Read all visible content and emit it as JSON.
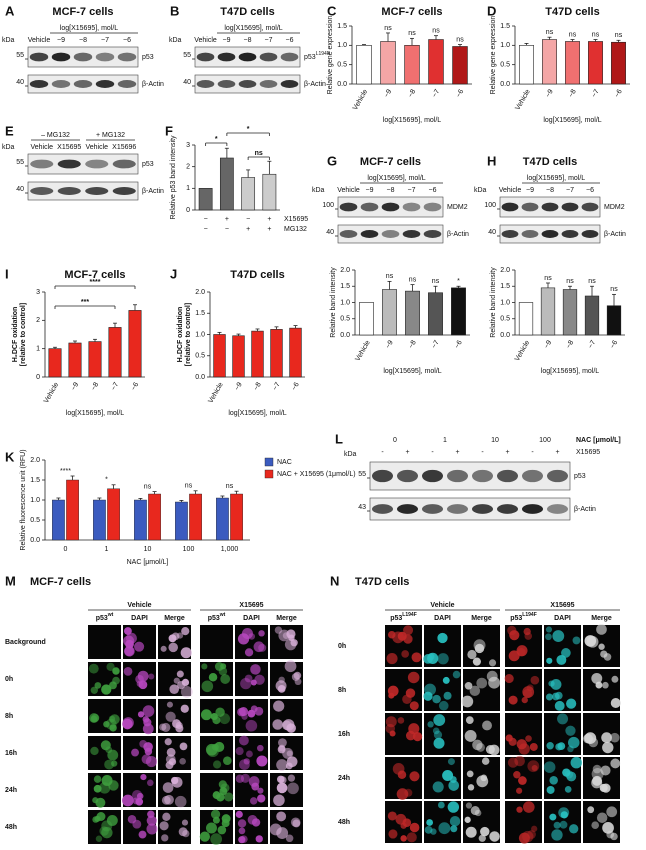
{
  "chart_data": [
    {
      "type": "bar",
      "letter": "C",
      "title": "MCF-7 cells",
      "ylabel": "Relative gene expression",
      "xlabel": "log[X15695], mol/L",
      "categories": [
        "Vehicle",
        "−9",
        "−8",
        "−7",
        "−6"
      ],
      "values": [
        1.0,
        1.1,
        1.0,
        1.15,
        0.97
      ],
      "errors": [
        0.02,
        0.22,
        0.18,
        0.1,
        0.05
      ],
      "colors": [
        "#ffffff",
        "#f4a6a6",
        "#f07070",
        "#e03030",
        "#b01818"
      ],
      "annotations": [
        null,
        "ns",
        "ns",
        "ns",
        "ns"
      ],
      "ylim": [
        0,
        1.5
      ],
      "yticks": [
        {
          "value": 0,
          "label": "0.0"
        },
        0.5,
        {
          "value": 1,
          "label": "1.0"
        },
        1.5
      ]
    },
    {
      "type": "bar",
      "letter": "D",
      "title": "T47D cells",
      "ylabel": "Relative gene expression",
      "xlabel": "log[X15695], mol/L",
      "categories": [
        "Vehicle",
        "−9",
        "−8",
        "−7",
        "−6"
      ],
      "values": [
        1.0,
        1.15,
        1.1,
        1.1,
        1.08
      ],
      "errors": [
        0.05,
        0.06,
        0.05,
        0.05,
        0.05
      ],
      "colors": [
        "#ffffff",
        "#f4a6a6",
        "#f07070",
        "#e03030",
        "#b01818"
      ],
      "annotations": [
        null,
        "ns",
        "ns",
        "ns",
        "ns"
      ],
      "ylim": [
        0,
        1.5
      ],
      "yticks": [
        {
          "value": 0,
          "label": "0.0"
        },
        0.5,
        {
          "value": 1,
          "label": "1.0"
        },
        1.5
      ]
    },
    {
      "type": "bar",
      "letter": "F",
      "ylabel": "Relative p53 band intensity",
      "values": [
        1.0,
        2.4,
        1.5,
        1.65
      ],
      "errors": [
        0,
        0.45,
        0.35,
        0.6
      ],
      "colors": [
        "#666666",
        "#666666",
        "#cccccc",
        "#cccccc"
      ],
      "rows": [
        {
          "label": "X15695",
          "signs": [
            "−",
            "+",
            "−",
            "+"
          ]
        },
        {
          "label": "MG132",
          "signs": [
            "−",
            "−",
            "+",
            "+"
          ]
        }
      ],
      "brackets": [
        "*",
        "ns",
        "*"
      ],
      "ylim": [
        0,
        3
      ],
      "yticks": [
        0,
        1,
        2,
        3
      ]
    },
    {
      "type": "bar",
      "ylabel": "Relative band intensity",
      "xlabel": "log[X15695], mol/L",
      "categories": [
        "Vehicle",
        "−9",
        "−8",
        "−7",
        "−6"
      ],
      "values": [
        1.0,
        1.4,
        1.35,
        1.3,
        1.45
      ],
      "errors": [
        0,
        0.25,
        0.2,
        0.2,
        0.05
      ],
      "colors": [
        "#ffffff",
        "#bbbbbb",
        "#888888",
        "#555555",
        "#111111"
      ],
      "annotations": [
        null,
        "ns",
        "ns",
        "ns",
        "*"
      ],
      "ylim": [
        0,
        2
      ],
      "yticks": [
        {
          "value": 0,
          "label": "0.0"
        },
        0.5,
        {
          "value": 1,
          "label": "1.0"
        },
        1.5,
        {
          "value": 2,
          "label": "2.0"
        }
      ]
    },
    {
      "type": "bar",
      "ylabel": "Relative band intensity",
      "xlabel": "log[X15695], mol/L",
      "categories": [
        "Vehicle",
        "−9",
        "−8",
        "−7",
        "−6"
      ],
      "values": [
        1.0,
        1.45,
        1.4,
        1.2,
        0.9
      ],
      "errors": [
        0,
        0.15,
        0.1,
        0.3,
        0.35
      ],
      "colors": [
        "#ffffff",
        "#bbbbbb",
        "#888888",
        "#555555",
        "#111111"
      ],
      "annotations": [
        null,
        "ns",
        "ns",
        "ns",
        "ns"
      ],
      "ylim": [
        0,
        2
      ],
      "yticks": [
        {
          "value": 0,
          "label": "0.0"
        },
        0.5,
        {
          "value": 1,
          "label": "1.0"
        },
        1.5,
        {
          "value": 2,
          "label": "2.0"
        }
      ]
    },
    {
      "type": "bar",
      "letter": "I",
      "title": "MCF-7 cells",
      "ylabel": [
        "H₂DCF oxidation",
        "[relative to control]"
      ],
      "xlabel": "log[X15695], mol/L",
      "categories": [
        "Vehicle",
        "−9",
        "−8",
        "−7",
        "−6"
      ],
      "values": [
        1.0,
        1.2,
        1.25,
        1.75,
        2.35
      ],
      "errors": [
        0.05,
        0.07,
        0.08,
        0.15,
        0.2
      ],
      "color": "#e8281e",
      "brackets": [
        "****",
        "***"
      ],
      "ylim": [
        0,
        3
      ],
      "yticks": [
        0,
        1,
        2,
        3
      ]
    },
    {
      "type": "bar",
      "letter": "J",
      "title": "T47D cells",
      "ylabel": [
        "H₂DCF oxidation",
        "[relative to control]"
      ],
      "xlabel": "log[X15695], mol/L",
      "categories": [
        "Vehicle",
        "−9",
        "−8",
        "−7",
        "−6"
      ],
      "values": [
        1.0,
        0.97,
        1.08,
        1.12,
        1.15
      ],
      "errors": [
        0.05,
        0.04,
        0.05,
        0.06,
        0.06
      ],
      "color": "#e8281e",
      "ylim": [
        0,
        2
      ],
      "yticks": [
        {
          "value": 0,
          "label": "0.0"
        },
        0.5,
        {
          "value": 1,
          "label": "1.0"
        },
        1.5,
        {
          "value": 2,
          "label": "2.0"
        }
      ]
    },
    {
      "type": "bar",
      "letter": "K",
      "ylabel": "Relative fluorescence unit (RFU)",
      "xlabel": "NAC [μmol/L]",
      "categories": [
        "0",
        "1",
        "10",
        "100",
        "1,000"
      ],
      "series": [
        {
          "name": "NAC",
          "color": "#3b5bbf",
          "values": [
            1.0,
            1.0,
            1.0,
            0.95,
            1.05
          ],
          "errors": [
            0.05,
            0.05,
            0.04,
            0.04,
            0.05
          ]
        },
        {
          "name": "NAC + X15695 (1μmol/L)",
          "color": "#e8281e",
          "values": [
            1.5,
            1.28,
            1.15,
            1.15,
            1.15
          ],
          "errors": [
            0.1,
            0.1,
            0.06,
            0.08,
            0.07
          ]
        }
      ],
      "annotations": [
        "****",
        "*",
        "ns",
        "ns",
        "ns"
      ],
      "ylim": [
        0,
        2
      ],
      "yticks": [
        {
          "value": 0,
          "label": "0.0"
        },
        0.5,
        {
          "value": 1,
          "label": "1.0"
        },
        1.5,
        {
          "value": 2,
          "label": "2.0"
        }
      ]
    }
  ],
  "blots": [
    {
      "letter": "A",
      "title": "MCF-7 cells",
      "treatment": "log[X15695], mol/L",
      "lanes": [
        "Vehicle",
        "−9",
        "−8",
        "−7",
        "−6"
      ],
      "kda": "kDa",
      "markers": [
        "55",
        "40"
      ],
      "bands": [
        {
          "name": "p53"
        },
        {
          "name": "β-Actin"
        }
      ]
    },
    {
      "letter": "B",
      "title": "T47D cells",
      "treatment": "log[X15695], mol/L",
      "lanes": [
        "Vehicle",
        "−9",
        "−8",
        "−7",
        "−6"
      ],
      "kda": "kDa",
      "markers": [
        "55",
        "40"
      ],
      "bands": [
        {
          "name": "p53",
          "sup": "L194F"
        },
        {
          "name": "β-Actin"
        }
      ]
    },
    {
      "letter": "E",
      "groups": [
        "– MG132",
        "+ MG132"
      ],
      "lanes": [
        "Vehicle",
        "X15695",
        "Vehicle",
        "X15696"
      ],
      "kda": "kDa",
      "markers": [
        "55",
        "40"
      ],
      "bands": [
        {
          "name": "p53"
        },
        {
          "name": "β-Actin"
        }
      ]
    },
    {
      "letter": "G",
      "title": "MCF-7 cells",
      "treatment": "log[X15695], mol/L",
      "lanes": [
        "Vehicle",
        "−9",
        "−8",
        "−7",
        "−6"
      ],
      "kda": "kDa",
      "markers": [
        "100",
        "40"
      ],
      "bands": [
        {
          "name": "MDM2"
        },
        {
          "name": "β-Actin"
        }
      ]
    },
    {
      "letter": "H",
      "title": "T47D cells",
      "treatment": "log[X15695], mol/L",
      "lanes": [
        "Vehicle",
        "−9",
        "−8",
        "−7",
        "−6"
      ],
      "kda": "kDa",
      "markers": [
        "100",
        "40"
      ],
      "bands": [
        {
          "name": "MDM2"
        },
        {
          "name": "β-Actin"
        }
      ]
    },
    {
      "letter": "L",
      "header": "NAC [μmol/L]",
      "doses": [
        "0",
        "1",
        "10",
        "100"
      ],
      "agent": "X15695",
      "signs": [
        "-",
        "+",
        "-",
        "+",
        "-",
        "+",
        "-",
        "+"
      ],
      "kda": "kDa",
      "markers": [
        "55",
        "43"
      ],
      "bands": [
        {
          "name": "p53"
        },
        {
          "name": "β-Actin"
        }
      ]
    }
  ],
  "microscopy": [
    {
      "letter": "M",
      "title": "MCF-7 cells",
      "groups": [
        "Vehicle",
        "X15695"
      ],
      "marker": {
        "name": "p53",
        "sup": "wt"
      },
      "channels": [
        "DAPI",
        "Merge"
      ],
      "rows": [
        "Background",
        "0h",
        "8h",
        "16h",
        "24h",
        "48h"
      ]
    },
    {
      "letter": "N",
      "title": "T47D cells",
      "groups": [
        "Vehicle",
        "X15695"
      ],
      "marker": {
        "name": "p53",
        "sup": "L194F"
      },
      "channels": [
        "DAPI",
        "Merge"
      ],
      "rows": [
        "0h",
        "8h",
        "16h",
        "24h",
        "48h"
      ]
    }
  ]
}
